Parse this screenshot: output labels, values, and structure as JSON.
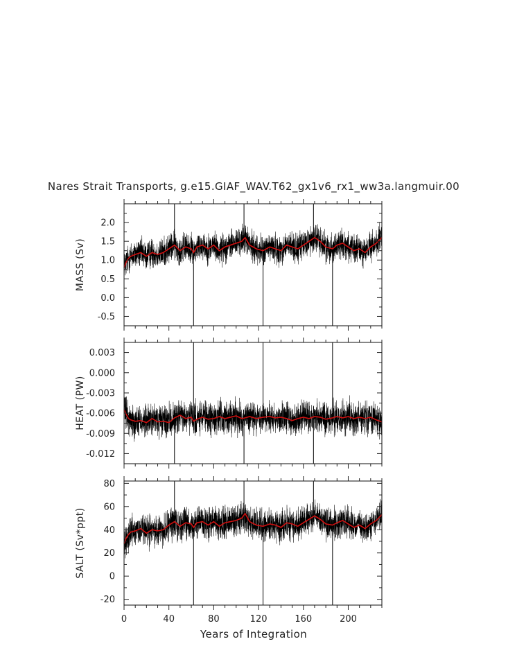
{
  "chart_data": {
    "type": "line",
    "title": "Nares Strait Transports, g.e15.GIAF_WAV.T62_gx1v6_rx1_ww3a.langmuir.00",
    "xlabel": "Years of Integration",
    "xlim": [
      0,
      230
    ],
    "xticks": [
      0,
      40,
      80,
      120,
      160,
      200
    ],
    "xtick_labels": [
      "0",
      "40",
      "80",
      "120",
      "160",
      "200"
    ],
    "vertical_lines_x": [
      62,
      124,
      186
    ],
    "colors": {
      "monthly": "#000000",
      "smoothed": "#d01010"
    },
    "series": [
      {
        "ylabel": "MASS (Sv)",
        "ylim": [
          -0.75,
          2.5
        ],
        "yticks": [
          -0.5,
          0.0,
          0.5,
          1.0,
          1.5,
          2.0
        ],
        "ytick_labels": [
          "-0.5",
          "0.0",
          "0.5",
          "1.0",
          "1.5",
          "2.0"
        ],
        "smoothed_x": [
          0,
          2,
          4,
          6,
          10,
          15,
          20,
          25,
          30,
          35,
          40,
          45,
          50,
          55,
          60,
          62,
          65,
          70,
          75,
          80,
          85,
          90,
          95,
          100,
          105,
          108,
          112,
          118,
          124,
          130,
          135,
          140,
          145,
          150,
          155,
          160,
          165,
          170,
          175,
          180,
          186,
          190,
          195,
          200,
          205,
          210,
          215,
          220,
          225,
          230
        ],
        "smoothed_y": [
          0.8,
          0.95,
          1.05,
          1.1,
          1.15,
          1.2,
          1.1,
          1.2,
          1.15,
          1.2,
          1.3,
          1.4,
          1.25,
          1.35,
          1.3,
          1.2,
          1.35,
          1.4,
          1.3,
          1.4,
          1.25,
          1.35,
          1.4,
          1.45,
          1.5,
          1.6,
          1.4,
          1.3,
          1.25,
          1.35,
          1.3,
          1.25,
          1.4,
          1.35,
          1.3,
          1.4,
          1.5,
          1.6,
          1.5,
          1.35,
          1.3,
          1.4,
          1.45,
          1.35,
          1.25,
          1.3,
          1.2,
          1.35,
          1.45,
          1.6
        ],
        "noise_amplitude": 0.35,
        "spikes": [
          [
            45,
            2.5
          ],
          [
            62,
            -0.75
          ],
          [
            107,
            2.5
          ],
          [
            124,
            -0.75
          ],
          [
            169,
            2.5
          ],
          [
            186,
            -0.75
          ]
        ]
      },
      {
        "ylabel": "HEAT (PW)",
        "ylim": [
          -0.0135,
          0.0045
        ],
        "yticks": [
          -0.012,
          -0.009,
          -0.006,
          -0.003,
          0.0,
          0.003
        ],
        "ytick_labels": [
          "-0.012",
          "-0.009",
          "-0.006",
          "-0.003",
          "0.000",
          "0.003"
        ],
        "smoothed_x": [
          0,
          2,
          4,
          6,
          10,
          15,
          20,
          25,
          30,
          35,
          40,
          45,
          50,
          55,
          60,
          62,
          65,
          70,
          75,
          80,
          85,
          90,
          95,
          100,
          105,
          108,
          112,
          118,
          124,
          130,
          135,
          140,
          145,
          150,
          155,
          160,
          165,
          170,
          175,
          180,
          186,
          190,
          195,
          200,
          205,
          210,
          215,
          220,
          225,
          230
        ],
        "smoothed_y": [
          -0.0055,
          -0.0062,
          -0.0068,
          -0.007,
          -0.0072,
          -0.0071,
          -0.0074,
          -0.0068,
          -0.0073,
          -0.0072,
          -0.0074,
          -0.0067,
          -0.0063,
          -0.0068,
          -0.0066,
          -0.0072,
          -0.0069,
          -0.0066,
          -0.0069,
          -0.0068,
          -0.0065,
          -0.0068,
          -0.0066,
          -0.0064,
          -0.0068,
          -0.0067,
          -0.0065,
          -0.0068,
          -0.0066,
          -0.0065,
          -0.0067,
          -0.0066,
          -0.0068,
          -0.0071,
          -0.0068,
          -0.0066,
          -0.0068,
          -0.0065,
          -0.0066,
          -0.0069,
          -0.0067,
          -0.0065,
          -0.0067,
          -0.0065,
          -0.0068,
          -0.0066,
          -0.0068,
          -0.0066,
          -0.007,
          -0.0073
        ],
        "noise_amplitude": 0.0022,
        "spikes": [
          [
            45,
            -0.0135
          ],
          [
            62,
            0.0045
          ],
          [
            107,
            -0.0135
          ],
          [
            124,
            0.0045
          ],
          [
            169,
            -0.0135
          ],
          [
            186,
            0.0045
          ]
        ]
      },
      {
        "ylabel": "SALT (Sv*ppt)",
        "ylim": [
          -25,
          82
        ],
        "yticks": [
          -20,
          0,
          20,
          40,
          60,
          80
        ],
        "ytick_labels": [
          "-20",
          "0",
          "20",
          "40",
          "60",
          "80"
        ],
        "smoothed_x": [
          0,
          2,
          4,
          6,
          10,
          15,
          20,
          25,
          30,
          35,
          40,
          45,
          50,
          55,
          60,
          62,
          65,
          70,
          75,
          80,
          85,
          90,
          95,
          100,
          105,
          108,
          112,
          118,
          124,
          130,
          135,
          140,
          145,
          150,
          155,
          160,
          165,
          170,
          175,
          180,
          186,
          190,
          195,
          200,
          205,
          210,
          215,
          220,
          225,
          230
        ],
        "smoothed_y": [
          28,
          33,
          36,
          38,
          39,
          41,
          37,
          40,
          39,
          40,
          44,
          47,
          43,
          46,
          45,
          42,
          46,
          47,
          44,
          47,
          43,
          46,
          47,
          48,
          50,
          54,
          47,
          44,
          43,
          45,
          44,
          42,
          46,
          45,
          43,
          46,
          49,
          52,
          49,
          45,
          44,
          46,
          48,
          45,
          42,
          44,
          41,
          45,
          48,
          53
        ],
        "noise_amplitude": 12,
        "spikes": [
          [
            45,
            82
          ],
          [
            62,
            -25
          ],
          [
            107,
            82
          ],
          [
            124,
            -25
          ],
          [
            169,
            82
          ],
          [
            186,
            -25
          ]
        ]
      }
    ]
  }
}
